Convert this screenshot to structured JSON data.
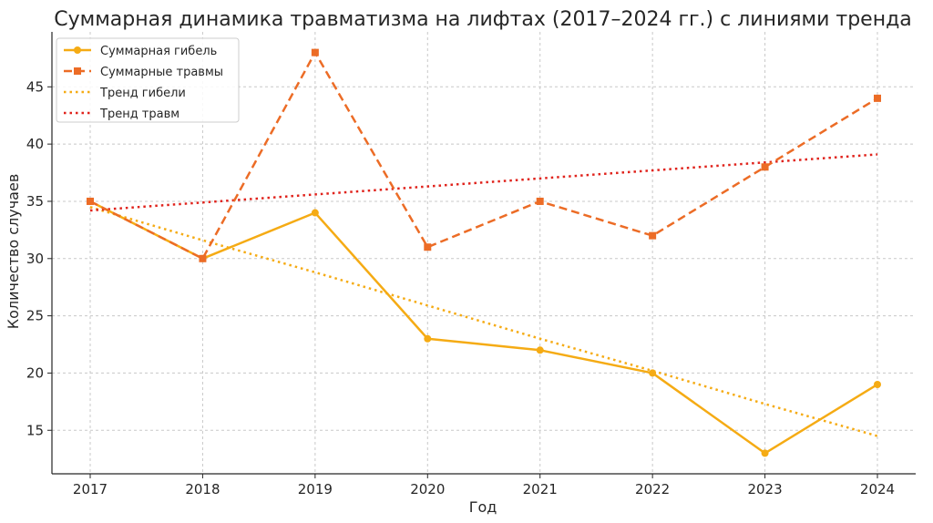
{
  "chart_data": {
    "type": "line",
    "title": "Суммарная динамика травматизма на лифтах (2017–2024 гг.) с линиями тренда",
    "xlabel": "Год",
    "ylabel": "Количество случаев",
    "categories": [
      "2017",
      "2018",
      "2019",
      "2020",
      "2021",
      "2022",
      "2023",
      "2024"
    ],
    "yticks": [
      15,
      20,
      25,
      30,
      35,
      40,
      45
    ],
    "ylim": [
      11.2,
      49.8
    ],
    "grid": true,
    "legend_position": "top-left",
    "series": [
      {
        "name": "Суммарная гибель",
        "values": [
          35,
          30,
          34,
          23,
          22,
          20,
          13,
          19
        ],
        "color": "#f5ab14",
        "style": "solid",
        "marker": "circle"
      },
      {
        "name": "Суммарные травмы",
        "values": [
          35,
          30,
          48,
          31,
          35,
          32,
          38,
          44
        ],
        "color": "#ec6c26",
        "style": "dashed",
        "marker": "square"
      },
      {
        "name": "Тренд гибели",
        "values": [
          34.5,
          31.6,
          28.8,
          25.9,
          23.0,
          20.2,
          17.3,
          14.5
        ],
        "color": "#f5ab14",
        "style": "dotted",
        "marker": "none"
      },
      {
        "name": "Тренд травм",
        "values": [
          34.2,
          34.9,
          35.6,
          36.3,
          37.0,
          37.7,
          38.4,
          39.1
        ],
        "color": "#e0231c",
        "style": "dotted",
        "marker": "none"
      }
    ]
  }
}
